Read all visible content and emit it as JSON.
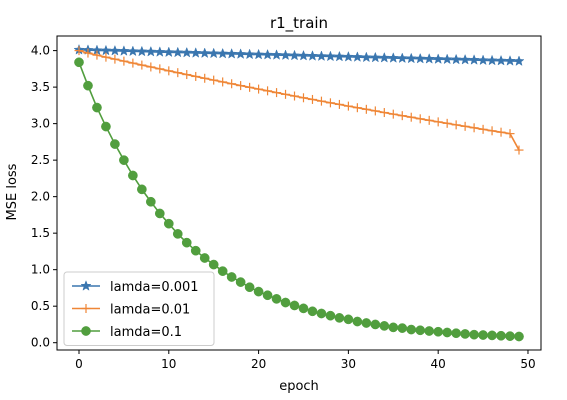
{
  "chart_data": {
    "type": "line",
    "title": "r1_train",
    "xlabel": "epoch",
    "ylabel": "MSE loss",
    "xlim": [
      -2.45,
      51.45
    ],
    "ylim": [
      -0.1,
      4.2
    ],
    "xticks": [
      0,
      10,
      20,
      30,
      40,
      50
    ],
    "yticks": [
      0.0,
      0.5,
      1.0,
      1.5,
      2.0,
      2.5,
      3.0,
      3.5,
      4.0
    ],
    "grid": false,
    "legend_position": "lower-left",
    "x": [
      0,
      1,
      2,
      3,
      4,
      5,
      6,
      7,
      8,
      9,
      10,
      11,
      12,
      13,
      14,
      15,
      16,
      17,
      18,
      19,
      20,
      21,
      22,
      23,
      24,
      25,
      26,
      27,
      28,
      29,
      30,
      31,
      32,
      33,
      34,
      35,
      36,
      37,
      38,
      39,
      40,
      41,
      42,
      43,
      44,
      45,
      46,
      47,
      48,
      49
    ],
    "series": [
      {
        "name": "lamda=0.001",
        "color": "#3a76af",
        "marker": "star",
        "values": [
          4.01,
          4.007,
          4.003,
          4.0,
          3.997,
          3.994,
          3.99,
          3.987,
          3.984,
          3.98,
          3.977,
          3.974,
          3.971,
          3.967,
          3.964,
          3.961,
          3.958,
          3.955,
          3.952,
          3.948,
          3.945,
          3.942,
          3.939,
          3.936,
          3.932,
          3.929,
          3.926,
          3.923,
          3.92,
          3.917,
          3.914,
          3.911,
          3.907,
          3.904,
          3.901,
          3.898,
          3.895,
          3.892,
          3.889,
          3.886,
          3.883,
          3.88,
          3.877,
          3.874,
          3.871,
          3.867,
          3.864,
          3.861,
          3.858,
          3.855
        ]
      },
      {
        "name": "lamda=0.01",
        "color": "#ef8636",
        "marker": "plus",
        "values": [
          4.0,
          3.966,
          3.938,
          3.91,
          3.883,
          3.856,
          3.829,
          3.802,
          3.776,
          3.75,
          3.723,
          3.698,
          3.672,
          3.646,
          3.621,
          3.596,
          3.571,
          3.546,
          3.521,
          3.497,
          3.473,
          3.449,
          3.425,
          3.401,
          3.378,
          3.354,
          3.331,
          3.308,
          3.285,
          3.263,
          3.24,
          3.218,
          3.196,
          3.174,
          3.152,
          3.13,
          3.109,
          3.088,
          3.066,
          3.045,
          3.024,
          3.004,
          2.983,
          2.963,
          2.943,
          2.922,
          2.902,
          2.883,
          2.863,
          2.638
        ]
      },
      {
        "name": "lamda=0.1",
        "color": "#519e3e",
        "marker": "circle",
        "values": [
          3.84,
          3.52,
          3.22,
          2.96,
          2.72,
          2.5,
          2.29,
          2.1,
          1.93,
          1.77,
          1.63,
          1.49,
          1.37,
          1.26,
          1.16,
          1.07,
          0.98,
          0.9,
          0.83,
          0.76,
          0.7,
          0.65,
          0.6,
          0.55,
          0.51,
          0.47,
          0.43,
          0.4,
          0.37,
          0.34,
          0.32,
          0.29,
          0.27,
          0.25,
          0.23,
          0.21,
          0.2,
          0.18,
          0.17,
          0.16,
          0.15,
          0.14,
          0.13,
          0.12,
          0.11,
          0.105,
          0.1,
          0.095,
          0.09,
          0.085
        ]
      }
    ]
  }
}
